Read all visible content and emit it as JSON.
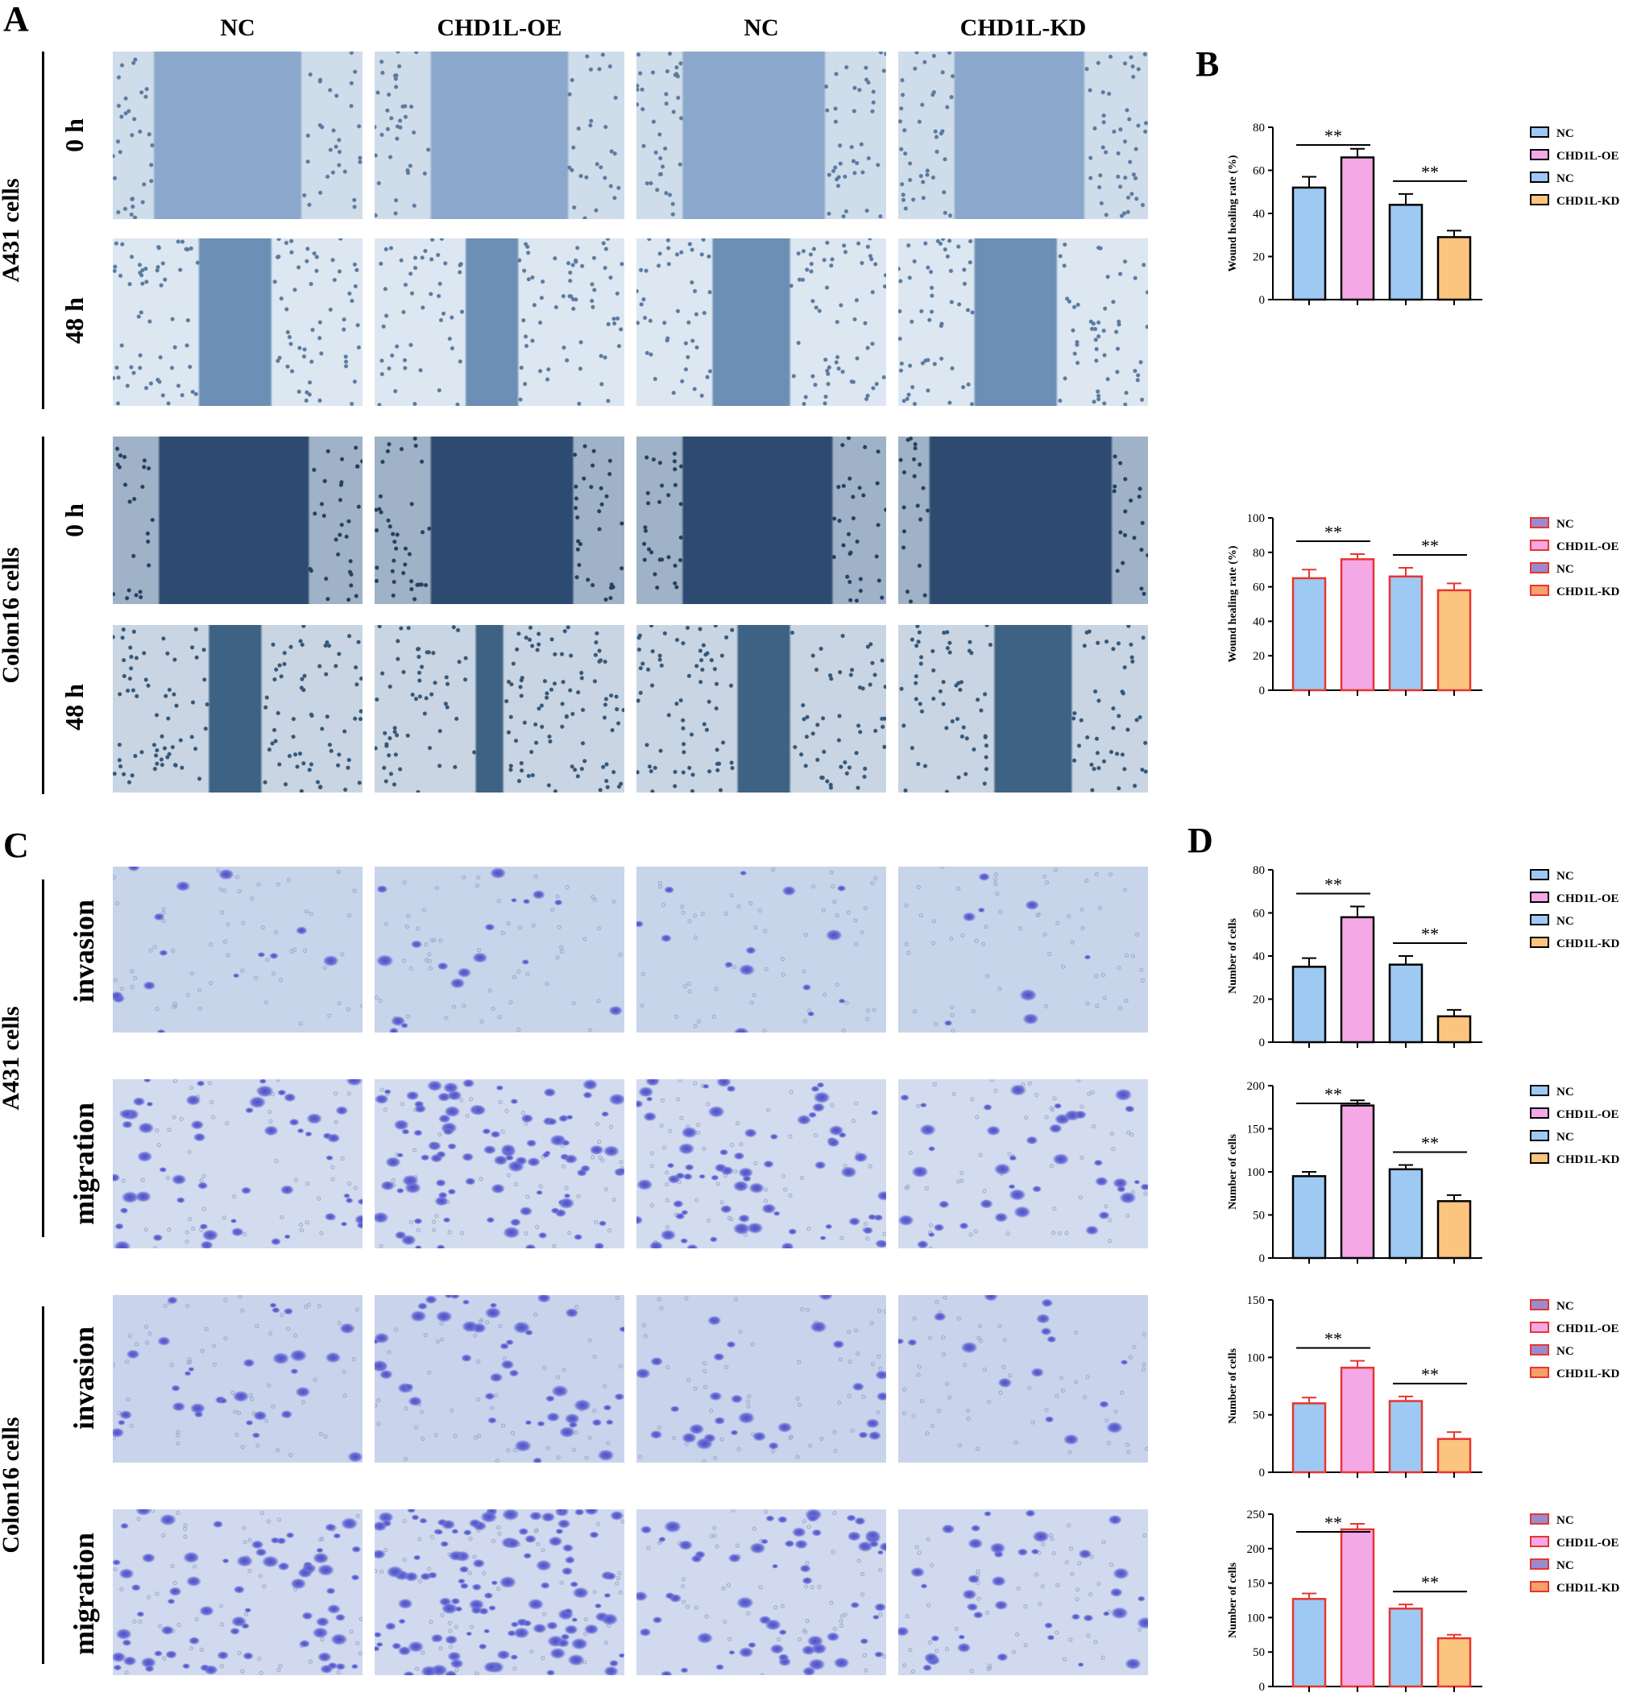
{
  "panels": {
    "A": "A",
    "B": "B",
    "C": "C",
    "D": "D"
  },
  "columns": [
    "NC",
    "CHD1L-OE",
    "NC",
    "CHD1L-KD"
  ],
  "groups": {
    "a_top": "A431 cells",
    "a_bottom": "Colon16 cells",
    "c_top": "A431 cells",
    "c_bottom": "Colon16 cells"
  },
  "rows": {
    "wound_0h": "0 h",
    "wound_48h": "48 h",
    "invasion": "invasion",
    "migration": "migration"
  },
  "colors": {
    "nc_fill": "#9ec9f3",
    "oe_fill": "#f4a8e6",
    "kd_fill": "#fbc47f",
    "edge_red": "#e8352f",
    "legend_nc_red": "#9a8bd0",
    "legend_kd_red": "#f6a06a"
  },
  "chart_data": [
    {
      "id": "B1",
      "type": "bar",
      "edge": "black",
      "categories": [
        "NC",
        "CHD1L-OE",
        "NC",
        "CHD1L-KD"
      ],
      "values": [
        52,
        66,
        44,
        29
      ],
      "errors": [
        5,
        4,
        5,
        3
      ],
      "ylabel": "Wound healing rate (%)",
      "ylim": [
        0,
        80
      ],
      "yticks": [
        "0",
        "20",
        "40",
        "60",
        "80"
      ],
      "significance": [
        "**",
        "**"
      ],
      "legend": [
        "NC",
        "CHD1L-OE",
        "NC",
        "CHD1L-KD"
      ]
    },
    {
      "id": "B2",
      "type": "bar",
      "edge": "red",
      "categories": [
        "NC",
        "CHD1L-OE",
        "NC",
        "CHD1L-KD"
      ],
      "values": [
        65,
        76,
        66,
        58
      ],
      "errors": [
        5,
        3,
        5,
        4
      ],
      "ylabel": "Wound healing rate (%)",
      "ylim": [
        0,
        100
      ],
      "yticks": [
        "0",
        "20",
        "40",
        "60",
        "80",
        "100"
      ],
      "significance": [
        "**",
        "**"
      ],
      "legend": [
        "NC",
        "CHD1L-OE",
        "NC",
        "CHD1L-KD"
      ]
    },
    {
      "id": "D1",
      "type": "bar",
      "edge": "black",
      "categories": [
        "NC",
        "CHD1L-OE",
        "NC",
        "CHD1L-KD"
      ],
      "values": [
        35,
        58,
        36,
        12
      ],
      "errors": [
        4,
        5,
        4,
        3
      ],
      "ylabel": "Number of cells",
      "ylim": [
        0,
        80
      ],
      "yticks": [
        "0",
        "20",
        "40",
        "60",
        "80"
      ],
      "significance": [
        "**",
        "**"
      ],
      "legend": [
        "NC",
        "CHD1L-OE",
        "NC",
        "CHD1L-KD"
      ]
    },
    {
      "id": "D2",
      "type": "bar",
      "edge": "black",
      "categories": [
        "NC",
        "CHD1L-OE",
        "NC",
        "CHD1L-KD"
      ],
      "values": [
        95,
        177,
        103,
        66
      ],
      "errors": [
        5,
        6,
        5,
        7
      ],
      "ylabel": "Number of cells",
      "ylim": [
        0,
        200
      ],
      "yticks": [
        "0",
        "50",
        "100",
        "150",
        "200"
      ],
      "significance": [
        "**",
        "**"
      ],
      "legend": [
        "NC",
        "CHD1L-OE",
        "NC",
        "CHD1L-KD"
      ]
    },
    {
      "id": "D3",
      "type": "bar",
      "edge": "red",
      "categories": [
        "NC",
        "CHD1L-OE",
        "NC",
        "CHD1L-KD"
      ],
      "values": [
        60,
        91,
        62,
        29
      ],
      "errors": [
        5,
        6,
        4,
        6
      ],
      "ylabel": "Number of cells",
      "ylim": [
        0,
        150
      ],
      "yticks": [
        "0",
        "50",
        "100",
        "150"
      ],
      "significance": [
        "**",
        "**"
      ],
      "legend": [
        "NC",
        "CHD1L-OE",
        "NC",
        "CHD1L-KD"
      ]
    },
    {
      "id": "D4",
      "type": "bar",
      "edge": "red",
      "categories": [
        "NC",
        "CHD1L-OE",
        "NC",
        "CHD1L-KD"
      ],
      "values": [
        127,
        228,
        113,
        70
      ],
      "errors": [
        8,
        8,
        6,
        5
      ],
      "ylabel": "Number of cells",
      "ylim": [
        0,
        250
      ],
      "yticks": [
        "0",
        "50",
        "100",
        "150",
        "200",
        "250"
      ],
      "significance": [
        "**",
        "**"
      ],
      "legend": [
        "NC",
        "CHD1L-OE",
        "NC",
        "CHD1L-KD"
      ]
    }
  ]
}
